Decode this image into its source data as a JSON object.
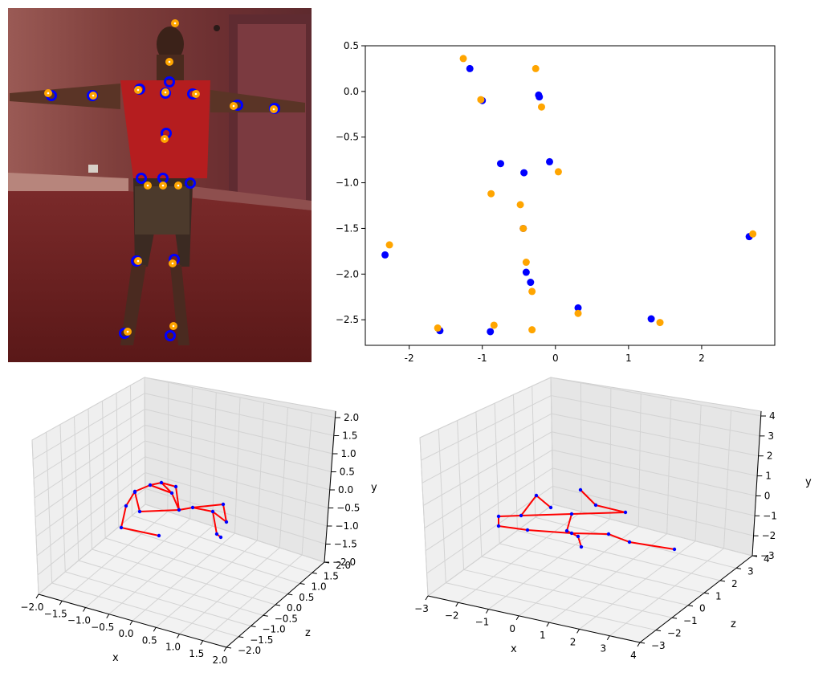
{
  "photo": {
    "description_free": true,
    "markers_blue": [
      [
        211,
        102
      ],
      [
        115,
        119
      ],
      [
        64,
        119
      ],
      [
        174,
        111
      ],
      [
        206,
        116
      ],
      [
        240,
        117
      ],
      [
        296,
        131
      ],
      [
        342,
        135
      ],
      [
        207,
        166
      ],
      [
        176,
        222
      ],
      [
        203,
        222
      ],
      [
        237,
        228
      ],
      [
        170,
        325
      ],
      [
        217,
        323
      ],
      [
        155,
        415
      ],
      [
        212,
        418
      ]
    ],
    "markers_orange": [
      [
        218,
        29
      ],
      [
        211,
        77
      ],
      [
        60,
        116
      ],
      [
        116,
        119
      ],
      [
        172,
        112
      ],
      [
        206,
        115
      ],
      [
        244,
        117
      ],
      [
        291,
        132
      ],
      [
        341,
        136
      ],
      [
        205,
        173
      ],
      [
        184,
        231
      ],
      [
        203,
        231
      ],
      [
        222,
        231
      ],
      [
        172,
        325
      ],
      [
        215,
        328
      ],
      [
        159,
        413
      ],
      [
        216,
        406
      ]
    ],
    "colors": {
      "blue": "#0000ff",
      "orange": "#ffa500"
    }
  },
  "chart_data": [
    {
      "type": "scatter",
      "xlim": [
        -2.6,
        3.0
      ],
      "ylim": [
        -2.78,
        0.5
      ],
      "x_ticks": [
        "-2",
        "-1",
        "0",
        "1",
        "2"
      ],
      "x_tick_values": [
        -2,
        -1,
        0,
        1,
        2
      ],
      "y_ticks": [
        "0.5",
        "0.0",
        "−0.5",
        "−1.0",
        "−1.5",
        "−2.0",
        "−2.5"
      ],
      "y_tick_values": [
        0.5,
        0.0,
        -0.5,
        -1.0,
        -1.5,
        -2.0,
        -2.5
      ],
      "series": [
        {
          "color": "#0000ff",
          "points": [
            [
              -1.17,
              0.25
            ],
            [
              -1.0,
              -0.1
            ],
            [
              -0.23,
              -0.04
            ],
            [
              -0.22,
              -0.06
            ],
            [
              -0.08,
              -0.77
            ],
            [
              -0.75,
              -0.79
            ],
            [
              -0.43,
              -0.89
            ],
            [
              -0.44,
              -1.5
            ],
            [
              -2.33,
              -1.79
            ],
            [
              2.65,
              -1.59
            ],
            [
              -0.4,
              -1.98
            ],
            [
              -0.34,
              -2.09
            ],
            [
              0.31,
              -2.37
            ],
            [
              1.31,
              -2.49
            ],
            [
              -1.58,
              -2.62
            ],
            [
              -0.89,
              -2.63
            ]
          ]
        },
        {
          "color": "#ffa500",
          "points": [
            [
              -1.26,
              0.36
            ],
            [
              -0.27,
              0.25
            ],
            [
              -1.02,
              -0.09
            ],
            [
              -0.19,
              -0.17
            ],
            [
              0.04,
              -0.88
            ],
            [
              -0.88,
              -1.12
            ],
            [
              -0.48,
              -1.24
            ],
            [
              -0.44,
              -1.5
            ],
            [
              -2.27,
              -1.68
            ],
            [
              2.7,
              -1.56
            ],
            [
              -0.4,
              -1.87
            ],
            [
              -0.32,
              -2.19
            ],
            [
              0.31,
              -2.43
            ],
            [
              1.43,
              -2.53
            ],
            [
              -1.61,
              -2.59
            ],
            [
              -0.84,
              -2.56
            ],
            [
              -0.32,
              -2.61
            ]
          ]
        }
      ]
    },
    {
      "type": "line",
      "projection": "3d",
      "xlabel": "x",
      "ylabel": "y",
      "zlabel": "z",
      "x_ticks": [
        "−2.0",
        "−1.5",
        "−1.0",
        "−0.5",
        "0.0",
        "0.5",
        "1.0",
        "1.5",
        "2.0"
      ],
      "z_ticks": [
        "−2.0",
        "−1.5",
        "−1.0",
        "−0.5",
        "0.0",
        "0.5",
        "1.0",
        "1.5",
        "2.0"
      ],
      "y_ticks": [
        "2.0",
        "1.5",
        "1.0",
        "0.5",
        "0.0",
        "−0.5",
        "−1.0",
        "−1.5",
        "−2.0"
      ],
      "line_color": "#ff0000",
      "marker_color": "#0000ff",
      "skeleton_segments": [
        [
          [
            201,
            601
          ],
          [
            187,
            604
          ]
        ],
        [
          [
            201,
            601
          ],
          [
            219,
            606
          ]
        ],
        [
          [
            187,
            604
          ],
          [
            168,
            612
          ]
        ],
        [
          [
            168,
            612
          ],
          [
            157,
            630
          ]
        ],
        [
          [
            157,
            630
          ],
          [
            151,
            657
          ]
        ],
        [
          [
            151,
            657
          ],
          [
            198,
            667
          ]
        ],
        [
          [
            219,
            606
          ],
          [
            223,
            635
          ]
        ],
        [
          [
            223,
            635
          ],
          [
            174,
            637
          ]
        ],
        [
          [
            174,
            637
          ],
          [
            168,
            613
          ]
        ],
        [
          [
            223,
            635
          ],
          [
            240,
            632
          ]
        ],
        [
          [
            240,
            632
          ],
          [
            265,
            637
          ]
        ],
        [
          [
            265,
            637
          ],
          [
            282,
            650
          ]
        ],
        [
          [
            240,
            632
          ],
          [
            278,
            628
          ]
        ],
        [
          [
            278,
            628
          ],
          [
            282,
            650
          ]
        ],
        [
          [
            265,
            637
          ],
          [
            270,
            665
          ]
        ],
        [
          [
            270,
            665
          ],
          [
            275,
            669
          ]
        ],
        [
          [
            201,
            601
          ],
          [
            214,
            614
          ]
        ],
        [
          [
            214,
            614
          ],
          [
            223,
            635
          ]
        ],
        [
          [
            187,
            604
          ],
          [
            214,
            614
          ]
        ]
      ]
    },
    {
      "type": "line",
      "projection": "3d",
      "xlabel": "x",
      "ylabel": "y",
      "zlabel": "z",
      "x_ticks": [
        "−3",
        "−2",
        "−1",
        "0",
        "1",
        "2",
        "3",
        "4"
      ],
      "z_ticks": [
        "−3",
        "−2",
        "−1",
        "0",
        "1",
        "2",
        "3",
        "4"
      ],
      "y_ticks": [
        "4",
        "3",
        "2",
        "1",
        "0",
        "−1",
        "−2",
        "−3"
      ],
      "line_color": "#ff0000",
      "marker_color": "#0000ff",
      "skeleton_segments": [
        [
          [
            723,
            610
          ],
          [
            742,
            629
          ]
        ],
        [
          [
            742,
            629
          ],
          [
            779,
            638
          ]
        ],
        [
          [
            779,
            638
          ],
          [
            712,
            640
          ]
        ],
        [
          [
            712,
            640
          ],
          [
            706,
            661
          ]
        ],
        [
          [
            706,
            661
          ],
          [
            720,
            668
          ]
        ],
        [
          [
            720,
            668
          ],
          [
            724,
            681
          ]
        ],
        [
          [
            712,
            640
          ],
          [
            649,
            642
          ]
        ],
        [
          [
            649,
            642
          ],
          [
            668,
            617
          ]
        ],
        [
          [
            668,
            617
          ],
          [
            686,
            632
          ]
        ],
        [
          [
            649,
            642
          ],
          [
            621,
            643
          ]
        ],
        [
          [
            621,
            643
          ],
          [
            621,
            655
          ]
        ],
        [
          [
            621,
            655
          ],
          [
            657,
            660
          ]
        ],
        [
          [
            657,
            660
          ],
          [
            712,
            664
          ]
        ],
        [
          [
            712,
            664
          ],
          [
            758,
            665
          ]
        ],
        [
          [
            758,
            665
          ],
          [
            784,
            675
          ]
        ],
        [
          [
            784,
            675
          ],
          [
            840,
            684
          ]
        ],
        [
          [
            712,
            664
          ],
          [
            706,
            661
          ]
        ]
      ]
    }
  ]
}
